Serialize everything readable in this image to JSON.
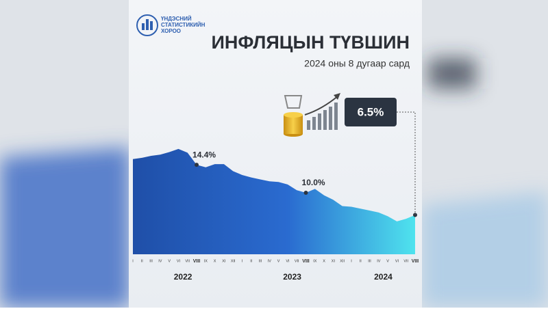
{
  "chart_data": {
    "type": "area",
    "logo_text": [
      "ҮНДЭСНИЙ",
      "СТАТИСТИКИЙН",
      "ХОРОО"
    ],
    "title": "ИНФЛЯЦЫН ТҮВШИН",
    "subtitle": "2024 оны 8 дугаар сард",
    "categories": [
      "I",
      "II",
      "III",
      "IV",
      "V",
      "VI",
      "VII",
      "VIII",
      "IX",
      "X",
      "XI",
      "XII",
      "I",
      "II",
      "III",
      "IV",
      "V",
      "VI",
      "VII",
      "VIII",
      "IX",
      "X",
      "XI",
      "XII",
      "I",
      "II",
      "III",
      "IV",
      "V",
      "VI",
      "VII",
      "VIII"
    ],
    "years": [
      "2022",
      "2023",
      "2024"
    ],
    "values": [
      15.3,
      15.5,
      15.8,
      16.0,
      16.4,
      16.9,
      16.3,
      14.4,
      14.0,
      14.5,
      14.5,
      13.4,
      12.8,
      12.4,
      12.1,
      11.8,
      11.7,
      11.3,
      10.4,
      10.0,
      10.6,
      9.6,
      8.9,
      7.9,
      7.8,
      7.5,
      7.2,
      6.9,
      6.3,
      5.5,
      5.9,
      6.5
    ],
    "value_labels": [
      null,
      null,
      null,
      null,
      null,
      null,
      null,
      "14.4%",
      null,
      null,
      null,
      null,
      null,
      null,
      null,
      null,
      null,
      null,
      null,
      "10.0%",
      null,
      null,
      null,
      null,
      null,
      null,
      null,
      null,
      null,
      null,
      null,
      "6.5%"
    ],
    "colors": [
      "#1f4fa8",
      "#2a6bd0",
      "#4fe3ee"
    ]
  }
}
